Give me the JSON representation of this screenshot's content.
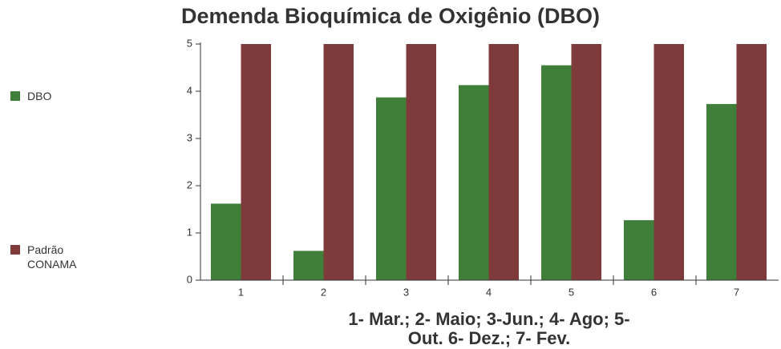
{
  "chart_data": {
    "type": "bar",
    "title": "Demenda Bioquímica de Oxigênio (DBO)",
    "x_label": [
      "1- Mar.; 2- Maio; 3-Jun.; 4- Ago; 5-",
      "Out. 6- Dez.; 7- Fev."
    ],
    "categories": [
      "1",
      "2",
      "3",
      "4",
      "5",
      "6",
      "7"
    ],
    "series": [
      {
        "name": "DBO",
        "color": "#3f7f3a",
        "values": [
          1.62,
          0.62,
          3.87,
          4.13,
          4.55,
          1.27,
          3.73
        ]
      },
      {
        "name": "Padrão CONAMA",
        "color": "#7f3b3b",
        "values": [
          5,
          5,
          5,
          5,
          5,
          5,
          5
        ]
      }
    ],
    "ylim": [
      0,
      5
    ],
    "yticks": [
      0,
      1,
      2,
      3,
      4,
      5
    ],
    "legend": "left"
  }
}
